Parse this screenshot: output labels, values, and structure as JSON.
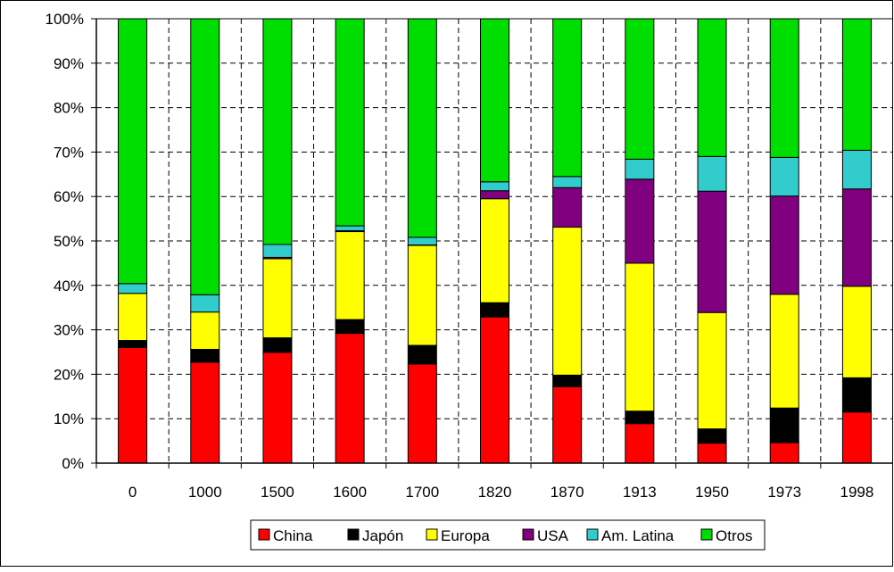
{
  "chart_data": {
    "type": "bar",
    "stacked": true,
    "percent_stacked": true,
    "categories": [
      "0",
      "1000",
      "1500",
      "1600",
      "1700",
      "1820",
      "1870",
      "1913",
      "1950",
      "1973",
      "1998"
    ],
    "series": [
      {
        "name": "China",
        "color": "#ff0000",
        "values": [
          26,
          22.7,
          24.9,
          29.2,
          22.3,
          32.9,
          17.2,
          8.9,
          4.5,
          4.6,
          11.5
        ]
      },
      {
        "name": "Japón",
        "color": "#000000",
        "values": [
          1.6,
          2.9,
          3.3,
          3.1,
          4.2,
          3.2,
          2.6,
          2.8,
          3.2,
          7.8,
          7.7
        ]
      },
      {
        "name": "Europa",
        "color": "#ffff00",
        "values": [
          10.6,
          8.4,
          17.8,
          19.8,
          22.5,
          23.4,
          33.3,
          33.3,
          26.2,
          25.6,
          20.6
        ]
      },
      {
        "name": "USA",
        "color": "#800080",
        "values": [
          0,
          0,
          0.3,
          0.2,
          0.1,
          1.8,
          8.9,
          18.9,
          27.3,
          22.1,
          21.9
        ]
      },
      {
        "name": "Am. Latina",
        "color": "#33cccc",
        "values": [
          2.2,
          3.9,
          2.9,
          1.1,
          1.7,
          2.0,
          2.5,
          4.5,
          7.8,
          8.7,
          8.7
        ]
      },
      {
        "name": "Otros",
        "color": "#00dd00",
        "values": [
          59.6,
          62.1,
          50.8,
          46.6,
          49.2,
          36.7,
          35.5,
          31.6,
          31.0,
          31.2,
          29.6
        ]
      }
    ],
    "y_ticks": [
      "0%",
      "10%",
      "20%",
      "30%",
      "40%",
      "50%",
      "60%",
      "70%",
      "80%",
      "90%",
      "100%"
    ],
    "ylim": [
      0,
      100
    ],
    "grid": "horizontal dashed",
    "legend_position": "bottom"
  }
}
